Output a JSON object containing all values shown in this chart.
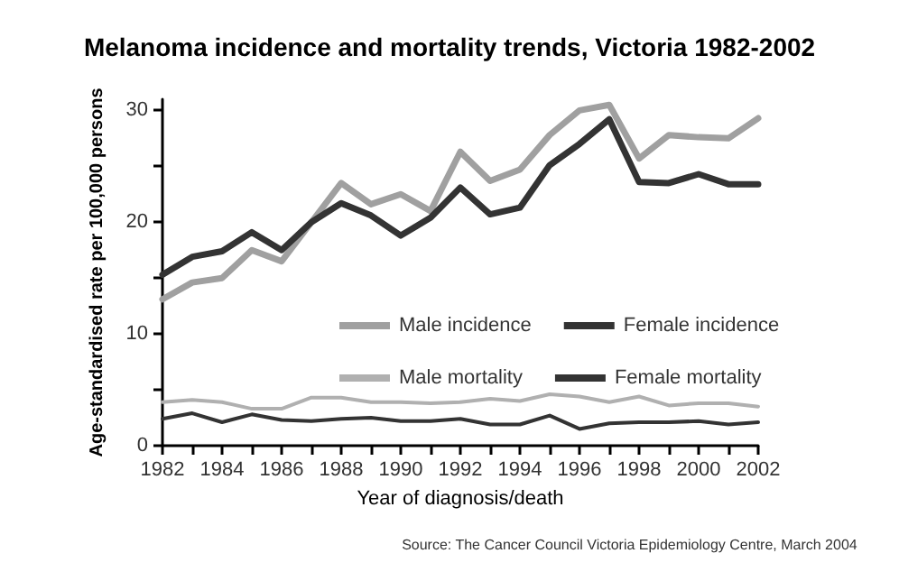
{
  "chart_data": {
    "type": "line",
    "title": "Melanoma incidence and mortality trends, Victoria 1982-2002",
    "xlabel": "Year of diagnosis/death",
    "ylabel": "Age-standardised rate per 100,000 persons",
    "annotations": [
      "Source: The Cancer Council Victoria Epidemiology Centre, March 2004"
    ],
    "x": [
      1982,
      1983,
      1984,
      1985,
      1986,
      1987,
      1988,
      1989,
      1990,
      1991,
      1992,
      1993,
      1994,
      1995,
      1996,
      1997,
      1998,
      1999,
      2000,
      2001,
      2002
    ],
    "series": [
      {
        "name": "Male incidence",
        "color": "#a0a0a0",
        "values": [
          13.1,
          14.6,
          15.0,
          17.5,
          16.5,
          20.0,
          23.5,
          21.6,
          22.5,
          21.0,
          26.3,
          23.7,
          24.7,
          27.8,
          30.0,
          30.5,
          25.7,
          27.8,
          27.6,
          27.5,
          29.3
        ]
      },
      {
        "name": "Female incidence",
        "color": "#333333",
        "values": [
          15.3,
          16.9,
          17.4,
          19.1,
          17.5,
          20.0,
          21.7,
          20.6,
          18.8,
          20.4,
          23.1,
          20.7,
          21.3,
          25.1,
          27.0,
          29.2,
          23.6,
          23.5,
          24.3,
          23.4,
          23.4
        ]
      },
      {
        "name": "Male mortality",
        "color": "#b0b0b0",
        "values": [
          3.9,
          4.1,
          3.9,
          3.3,
          3.3,
          4.3,
          4.3,
          3.9,
          3.9,
          3.8,
          3.9,
          4.2,
          4.0,
          4.6,
          4.4,
          3.9,
          4.4,
          3.6,
          3.8,
          3.8,
          3.5
        ]
      },
      {
        "name": "Female mortality",
        "color": "#333333",
        "values": [
          2.4,
          2.9,
          2.1,
          2.8,
          2.3,
          2.2,
          2.4,
          2.5,
          2.2,
          2.2,
          2.4,
          1.9,
          1.9,
          2.7,
          1.5,
          2.0,
          2.1,
          2.1,
          2.2,
          1.9,
          2.1
        ]
      }
    ],
    "xlim": [
      1982,
      2002
    ],
    "xticks": [
      1982,
      {
        "value": 1983,
        "label": null
      },
      1984,
      {
        "value": 1985,
        "label": null
      },
      1986,
      {
        "value": 1987,
        "label": null
      },
      1988,
      {
        "value": 1989,
        "label": null
      },
      1990,
      {
        "value": 1991,
        "label": null
      },
      1992,
      {
        "value": 1993,
        "label": null
      },
      1994,
      {
        "value": 1995,
        "label": null
      },
      1996,
      {
        "value": 1997,
        "label": null
      },
      1998,
      {
        "value": 1999,
        "label": null
      },
      2000,
      {
        "value": 2001,
        "label": null
      },
      2002
    ],
    "ylim": [
      0,
      31
    ],
    "yticks": [
      0,
      {
        "value": 5,
        "label": null
      },
      10,
      {
        "value": 15,
        "label": null
      },
      20,
      {
        "value": 25,
        "label": null
      },
      30
    ],
    "grid": false,
    "legend": "right",
    "marker": "none",
    "line_style": "solid"
  }
}
